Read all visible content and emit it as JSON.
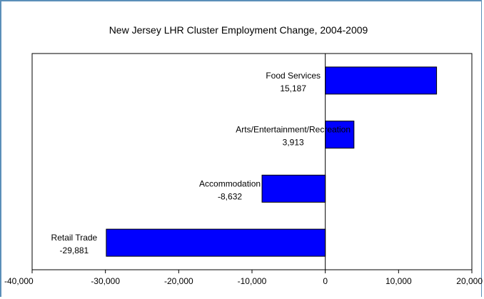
{
  "chart_data": {
    "type": "bar",
    "orientation": "horizontal",
    "title": "New Jersey LHR Cluster Employment Change, 2004-2009",
    "categories": [
      "Food Services",
      "Arts/Entertainment/Recreation",
      "Accommodation",
      "Retail Trade"
    ],
    "values": [
      15187,
      3913,
      -8632,
      -29881
    ],
    "data_labels": [
      "15,187",
      "3,913",
      "-8,632",
      "-29,881"
    ],
    "xlim": [
      -40000,
      20000
    ],
    "xticks": [
      -40000,
      -30000,
      -20000,
      -10000,
      0,
      10000,
      20000
    ],
    "xtick_labels": [
      "-40,000",
      "-30,000",
      "-20,000",
      "-10,000",
      "0",
      "10,000",
      "20,000"
    ],
    "grid": false,
    "legend": "none",
    "bar_color": "#0000ff"
  }
}
